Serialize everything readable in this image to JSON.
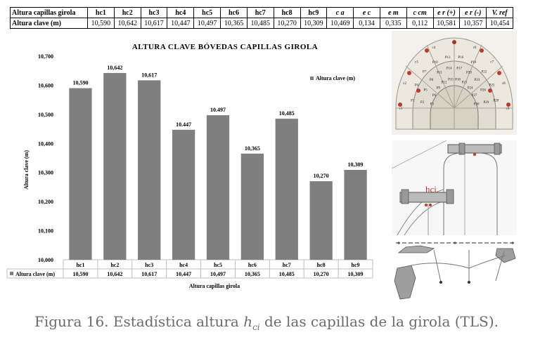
{
  "table": {
    "header": [
      "Altura capillas girola",
      "hc1",
      "hc2",
      "hc3",
      "hc4",
      "hc5",
      "hc6",
      "hc7",
      "hc8",
      "hc9",
      "c a",
      "e c",
      "e m",
      "c cm",
      "e r (+)",
      "e r (-)",
      "V. ref"
    ],
    "row": [
      "Altura clave (m)",
      "10,590",
      "10,642",
      "10,617",
      "10,447",
      "10,497",
      "10,365",
      "10,485",
      "10,270",
      "10,309",
      "10,469",
      "0,134",
      "0,335",
      "0,112",
      "10,581",
      "10,357",
      "10,454"
    ]
  },
  "chart_data": {
    "type": "bar",
    "title": "ALTURA CLAVE BÓVEDAS CAPILLAS GIROLA",
    "categories": [
      "hc1",
      "hc2",
      "hc3",
      "hc4",
      "hc5",
      "hc6",
      "hc7",
      "hc8",
      "hc9"
    ],
    "series": [
      {
        "name": "Altura clave (m)",
        "values": [
          10.59,
          10.642,
          10.617,
          10.447,
          10.497,
          10.365,
          10.485,
          10.27,
          10.309
        ]
      }
    ],
    "data_labels": [
      "10,590",
      "10,642",
      "10,617",
      "10.447",
      "10.497",
      "10,365",
      "10,485",
      "10,270",
      "10,309"
    ],
    "ylabel": "Altura clave (m)",
    "xlabel": "Altura capillas girola",
    "ylim": [
      10.0,
      10.7
    ],
    "yticks": [
      "10,000",
      "10,100",
      "10,200",
      "10,300",
      "10,400",
      "10,500",
      "10,600",
      "10,700"
    ],
    "legend_label": "Altura clave (m)",
    "legend_position": "right",
    "table_row_label": "Altura clave (m)",
    "table_values": [
      "10,590",
      "10,642",
      "10,617",
      "10,447",
      "10,497",
      "10,365",
      "10,485",
      "10,270",
      "10,309"
    ],
    "grid": false,
    "bar_color": "#7f7f7f"
  },
  "drawings": {
    "hci_label": "hci",
    "plan_labels": [
      "c1",
      "c2",
      "c3",
      "c4",
      "c5",
      "c6",
      "c7",
      "c8",
      "c9",
      "P1",
      "P2",
      "P3",
      "P4",
      "P5",
      "P6",
      "P7",
      "P8",
      "P9",
      "P10",
      "P11",
      "P12",
      "P13",
      "P14",
      "P15",
      "P16",
      "P17",
      "P18",
      "P19",
      "P20",
      "P21",
      "P22",
      "P23",
      "P24",
      "P25",
      "P26",
      "P27",
      "P28",
      "P29",
      "P30"
    ]
  },
  "caption": {
    "prefix": "Figura 16. Estadística altura ",
    "var": "h",
    "sub": "ci",
    "suffix": " de las capillas de la girola (TLS)."
  }
}
